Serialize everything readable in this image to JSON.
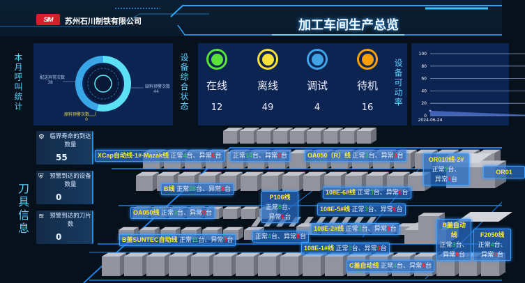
{
  "header": {
    "company": "苏州石川制铁有限公司",
    "logo_text": "SIM",
    "title": "加工车间生产总览"
  },
  "call_stats": {
    "section_label": "本月呼叫统计",
    "chart_data": {
      "type": "pie",
      "style": "donut",
      "slices": [
        {
          "name": "缺料预警次数",
          "value": 44,
          "color": "#5ce0f5"
        },
        {
          "name": "配送异常次数",
          "value": 38,
          "color": "#3aa8e8"
        },
        {
          "name": "原料预警次数",
          "value": 0,
          "color": "#e8d84a"
        }
      ]
    }
  },
  "equipment_status": {
    "section_label": "设备综合状态",
    "items": [
      {
        "label": "在线",
        "value": "12",
        "color": "#58e23a"
      },
      {
        "label": "离线",
        "value": "49",
        "color": "#f5e13a"
      },
      {
        "label": "调试",
        "value": "4",
        "color": "#3fa3e6"
      },
      {
        "label": "待机",
        "value": "16",
        "color": "#f5a00a"
      }
    ]
  },
  "availability": {
    "section_label": "设备可动率",
    "chart_data": {
      "type": "area",
      "categories": [
        "2024-06-24",
        ""
      ],
      "values": [
        8,
        1
      ],
      "ylim": [
        0,
        100
      ],
      "yticks": [
        "0",
        "20",
        "40",
        "60",
        "80",
        "100"
      ],
      "grid": true,
      "color": "#5a7de0"
    }
  },
  "tool_info": {
    "section_label": "刀具信息",
    "cards": [
      {
        "icon": "gears-icon",
        "title": "临界寿命的到达数量",
        "value": "55"
      },
      {
        "icon": "shield-icon",
        "title": "预警到达的设备数量",
        "value": "0"
      },
      {
        "icon": "layers-icon",
        "title": "预警到达的刀片数",
        "value": "0"
      }
    ]
  },
  "lines": {
    "normal_label": "正常",
    "abnormal_label": "异常",
    "unit": "台",
    "sep": "台、",
    "items": [
      {
        "name": "XCap自动线-1#-Mazak线",
        "normal": "4",
        "abnormal": "0"
      },
      {
        "name": "",
        "normal": "14",
        "abnormal": "0"
      },
      {
        "name": "OA050（R）线",
        "normal": "3",
        "abnormal": "0"
      },
      {
        "name": "B线",
        "normal": "28",
        "abnormal": "0"
      },
      {
        "name": "OA050线",
        "normal": "3",
        "abnormal": "0"
      },
      {
        "name": "B盖SUNTEC自动线",
        "normal": "11",
        "abnormal": "0"
      },
      {
        "name": "",
        "normal": "4",
        "abnormal": "0"
      },
      {
        "name": "P106线",
        "normal": "8",
        "abnormal": "0"
      },
      {
        "name": "108E-6#线",
        "normal": "3",
        "abnormal": "0"
      },
      {
        "name": "108E-5#线",
        "normal": "3",
        "abnormal": "0"
      },
      {
        "name": "108E-2#线",
        "normal": "3",
        "abnormal": "0"
      },
      {
        "name": "108E-1#线",
        "normal": "3",
        "abnormal": "0"
      },
      {
        "name": "C盖自动线",
        "normal": "4",
        "abnormal": "0"
      },
      {
        "name": "B盖自动线",
        "normal": "3",
        "abnormal": "0"
      },
      {
        "name": "F2050线",
        "normal": "4",
        "abnormal": "0"
      },
      {
        "name": "OR010线-2#",
        "normal": "2",
        "abnormal": "1"
      },
      {
        "name": "OR01",
        "normal": "",
        "abnormal": ""
      }
    ]
  }
}
